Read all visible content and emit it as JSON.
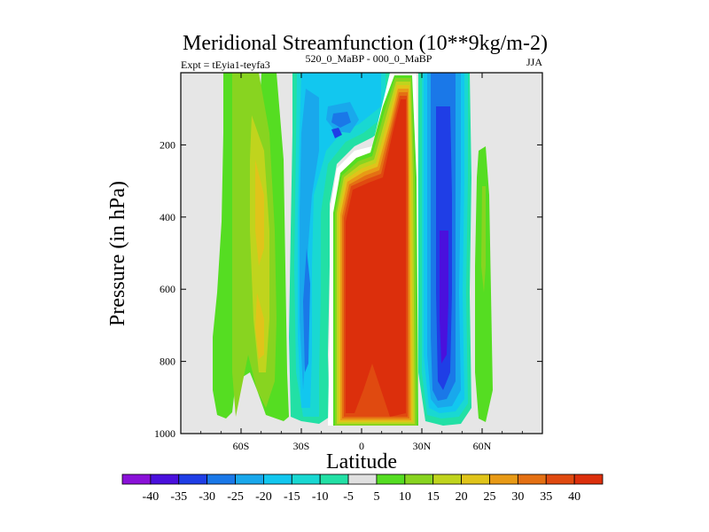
{
  "chart_data": {
    "type": "contour",
    "title": "Meridional Streamfunction (10**9kg/m-2)",
    "subtitle_left": "Expt = tEyia1-teyfa3",
    "subtitle_center": "520_0_MaBP - 000_0_MaBP",
    "season": "JJA",
    "xlabel": "Latitude",
    "ylabel": "Pressure (in hPa)",
    "xlim": [
      -90,
      90
    ],
    "ylim": [
      1000,
      0
    ],
    "x_ticks": [
      {
        "value": -60,
        "label": "60S"
      },
      {
        "value": -30,
        "label": "30S"
      },
      {
        "value": 0,
        "label": "0"
      },
      {
        "value": 30,
        "label": "30N"
      },
      {
        "value": 60,
        "label": "60N"
      }
    ],
    "y_ticks": [
      {
        "value": 200,
        "label": "200"
      },
      {
        "value": 400,
        "label": "400"
      },
      {
        "value": 600,
        "label": "600"
      },
      {
        "value": 800,
        "label": "800"
      },
      {
        "value": 1000,
        "label": "1000"
      }
    ],
    "colorbar_labels": [
      "-40",
      "-35",
      "-30",
      "-25",
      "-20",
      "-15",
      "-10",
      "-5",
      "5",
      "10",
      "15",
      "20",
      "25",
      "30",
      "35",
      "40"
    ],
    "colorbar_colors": [
      "#8a11d8",
      "#4a10dd",
      "#1f3ee6",
      "#1a78e8",
      "#19a8ec",
      "#12c7ef",
      "#19d8d2",
      "#22e0a5",
      "#e0e0e0",
      "#55dd22",
      "#88d420",
      "#c0d41d",
      "#e0c41a",
      "#e89a16",
      "#e47013",
      "#e04a10",
      "#dc2f0c"
    ],
    "missing_color": "#e6e6e6",
    "field": [
      {
        "lat": -78,
        "p_top": 0,
        "p_bot": 1000,
        "value": null
      },
      {
        "lat": -66,
        "p_top": 0,
        "p_bot": 920,
        "value": 5
      },
      {
        "lat": -61,
        "p_top": 0,
        "p_bot": 960,
        "value": 10
      },
      {
        "lat": -52,
        "p_top": 0,
        "p_bot": 960,
        "value": 15
      },
      {
        "lat": -49,
        "p_top": 200,
        "p_bot": 920,
        "value": 20
      },
      {
        "lat": -40,
        "p_top": 0,
        "p_bot": 960,
        "value": 5
      },
      {
        "lat": -32,
        "p_top": 0,
        "p_bot": 970,
        "value": -10
      },
      {
        "lat": -27,
        "p_top": 0,
        "p_bot": 970,
        "value": -15
      },
      {
        "lat": -15,
        "p_top": 0,
        "p_bot": 980,
        "value": -10
      },
      {
        "lat": 0,
        "p_top": 200,
        "p_bot": 1000,
        "value": 40
      },
      {
        "lat": 18,
        "p_top": 0,
        "p_bot": 1000,
        "value": 35
      },
      {
        "lat": 33,
        "p_top": 0,
        "p_bot": 990,
        "value": -25
      },
      {
        "lat": 41,
        "p_top": 0,
        "p_bot": 980,
        "value": -35
      },
      {
        "lat": 62,
        "p_top": 250,
        "p_bot": 960,
        "value": 5
      },
      {
        "lat": 80,
        "p_top": 0,
        "p_bot": 1000,
        "value": null
      }
    ]
  }
}
